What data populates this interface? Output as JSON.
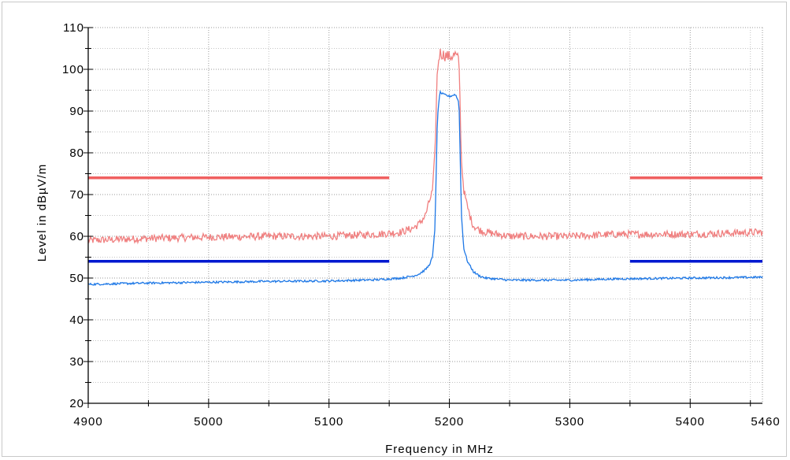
{
  "chart_data": {
    "type": "line",
    "xlabel": "Frequency in MHz",
    "ylabel": "Level in dBµV/m",
    "xlim": [
      4900,
      5460
    ],
    "ylim": [
      20,
      110
    ],
    "x_ticks": [
      4900,
      5000,
      5100,
      5200,
      5300,
      5400,
      5460
    ],
    "y_ticks": [
      20,
      30,
      40,
      50,
      60,
      70,
      80,
      90,
      100,
      110
    ],
    "grid": true,
    "colors": {
      "peak_trace": "#f08080",
      "avg_trace": "#1e78e6",
      "peak_limit": "#f06060",
      "avg_limit": "#0018d0"
    },
    "limit_lines": [
      {
        "color_key": "peak_limit",
        "segments": [
          {
            "x": [
              4900,
              5150
            ],
            "y": 74
          },
          {
            "x": [
              5350,
              5460
            ],
            "y": 74
          }
        ]
      },
      {
        "color_key": "avg_limit",
        "segments": [
          {
            "x": [
              4900,
              5150
            ],
            "y": 54
          },
          {
            "x": [
              5350,
              5460
            ],
            "y": 54
          }
        ]
      }
    ],
    "series": [
      {
        "color_key": "peak_trace",
        "x": [
          4900,
          4950,
          5000,
          5050,
          5100,
          5140,
          5160,
          5170,
          5175,
          5180,
          5183,
          5186,
          5188,
          5190,
          5192,
          5195,
          5200,
          5205,
          5208,
          5210,
          5212,
          5215,
          5218,
          5220,
          5225,
          5230,
          5250,
          5300,
          5340,
          5400,
          5460
        ],
        "y": [
          59,
          59.5,
          59.8,
          60,
          60,
          60.5,
          61,
          62,
          63,
          65,
          68,
          71,
          80,
          100,
          104,
          103.5,
          103,
          103.5,
          102,
          78,
          71,
          67,
          64,
          62.5,
          61.5,
          61,
          60,
          60,
          60.5,
          60.5,
          61
        ]
      },
      {
        "color_key": "avg_trace",
        "x": [
          4900,
          4950,
          5000,
          5050,
          5100,
          5140,
          5160,
          5170,
          5175,
          5180,
          5183,
          5186,
          5188,
          5190,
          5192,
          5195,
          5200,
          5205,
          5208,
          5210,
          5212,
          5215,
          5218,
          5220,
          5225,
          5230,
          5250,
          5300,
          5340,
          5400,
          5460
        ],
        "y": [
          48.5,
          48.8,
          49,
          49.2,
          49.3,
          49.6,
          50,
          50.5,
          51,
          52,
          53,
          55,
          62,
          88,
          94.5,
          94,
          93.5,
          94,
          92,
          65,
          57,
          54,
          52.5,
          51.5,
          50.5,
          50,
          49.5,
          49.5,
          49.8,
          50,
          50.2
        ]
      }
    ]
  }
}
